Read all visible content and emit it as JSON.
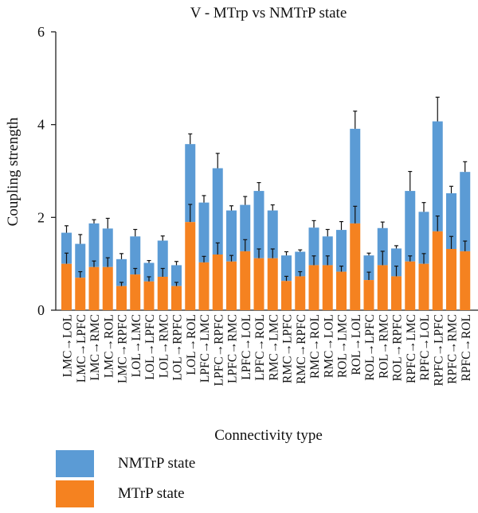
{
  "chart_data": {
    "type": "bar",
    "title": "V - MTrp vs NMTrP state",
    "xlabel": "Connectivity type",
    "ylabel": "Coupling strength",
    "ylim": [
      0,
      6
    ],
    "yticks": [
      0,
      2,
      4,
      6
    ],
    "stacked": true,
    "grid": false,
    "legend_position": "bottom-left",
    "categories": [
      "LMC→LOL",
      "LMC→LPFC",
      "LMC→RMC",
      "LMC→ROL",
      "LMC→RPFC",
      "LOL→LMC",
      "LOL→LPFC",
      "LOL→RMC",
      "LOL→RPFC",
      "LOL→ROL",
      "LPFC→LMC",
      "LPFC→RPFC",
      "LPFC→RMC",
      "LPFC→LOL",
      "LPFC→ROL",
      "RMC→LMC",
      "RMC→LPFC",
      "RMC→RPFC",
      "RMC→ROL",
      "RMC→LOL",
      "ROL→LMC",
      "ROL→LOL",
      "ROL→LPFC",
      "ROL→RMC",
      "ROL→RPFC",
      "RPFC→LMC",
      "RPFC→LOL",
      "RPFC→LPFC",
      "RPFC→RMC",
      "RPFC→ROL"
    ],
    "series": [
      {
        "name": "MTrP state",
        "color": "#f58220",
        "values": [
          1.0,
          0.7,
          0.93,
          0.93,
          0.52,
          0.77,
          0.62,
          0.72,
          0.52,
          1.9,
          1.03,
          1.2,
          1.05,
          1.27,
          1.12,
          1.12,
          0.63,
          0.73,
          0.97,
          0.97,
          0.83,
          1.87,
          0.65,
          0.97,
          0.73,
          1.05,
          1.0,
          1.7,
          1.32,
          1.27
        ],
        "errors": [
          0.23,
          0.13,
          0.13,
          0.2,
          0.08,
          0.13,
          0.1,
          0.18,
          0.08,
          0.38,
          0.13,
          0.25,
          0.13,
          0.25,
          0.2,
          0.2,
          0.1,
          0.1,
          0.2,
          0.2,
          0.12,
          0.37,
          0.17,
          0.3,
          0.22,
          0.12,
          0.22,
          0.33,
          0.27,
          0.22
        ]
      },
      {
        "name": "NMTrP state",
        "color": "#5b9bd5",
        "values": [
          0.67,
          0.73,
          0.94,
          0.83,
          0.58,
          0.82,
          0.4,
          0.78,
          0.45,
          1.68,
          1.29,
          1.86,
          1.1,
          1.0,
          1.45,
          1.03,
          0.55,
          0.53,
          0.81,
          0.62,
          0.9,
          2.04,
          0.53,
          0.8,
          0.6,
          1.52,
          1.12,
          2.37,
          1.2,
          1.71
        ],
        "errors": [
          0.15,
          0.2,
          0.08,
          0.22,
          0.12,
          0.15,
          0.05,
          0.1,
          0.08,
          0.22,
          0.15,
          0.32,
          0.1,
          0.18,
          0.18,
          0.12,
          0.08,
          0.04,
          0.15,
          0.15,
          0.18,
          0.38,
          0.05,
          0.13,
          0.06,
          0.42,
          0.2,
          0.52,
          0.15,
          0.22
        ]
      }
    ]
  }
}
